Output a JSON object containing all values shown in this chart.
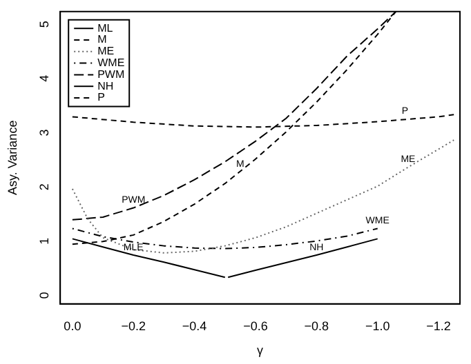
{
  "chart_data": {
    "type": "line",
    "xlabel": "γ",
    "ylabel": "Asy. Variance",
    "xlim": [
      0.04,
      -1.27
    ],
    "ylim": [
      -0.22,
      5.17
    ],
    "xticks": [
      {
        "value": 0,
        "label": "0.0"
      },
      {
        "value": -0.2,
        "label": "−0.2"
      },
      {
        "value": -0.4,
        "label": "−0.4"
      },
      {
        "value": -0.6,
        "label": "−0.6"
      },
      {
        "value": -0.8,
        "label": "−0.8"
      },
      {
        "value": -1,
        "label": "−1.0"
      },
      {
        "value": -1.2,
        "label": "−1.2"
      }
    ],
    "yticks": [
      0,
      1,
      2,
      3,
      4,
      5
    ],
    "grid": false,
    "legend": "top left",
    "marker": "none",
    "series": [
      {
        "name": "ML",
        "color": "#000000",
        "line_style": "solid",
        "x": [
          0,
          -0.1,
          -0.2,
          -0.3,
          -0.4,
          -0.5
        ],
        "values": [
          0.98,
          0.83,
          0.68,
          0.55,
          0.41,
          0.27
        ]
      },
      {
        "name": "M",
        "color": "#000000",
        "line_style": "dashed",
        "x": [
          0,
          -0.1,
          -0.2,
          -0.3,
          -0.4,
          -0.5,
          -0.6,
          -0.7,
          -0.8,
          -0.9,
          -1.0,
          -1.06
        ],
        "values": [
          0.88,
          0.93,
          1.05,
          1.3,
          1.62,
          2.0,
          2.45,
          2.95,
          3.5,
          4.1,
          4.75,
          5.17
        ]
      },
      {
        "name": "ME",
        "color": "#666666",
        "line_style": "dotted",
        "x": [
          0,
          -0.05,
          -0.1,
          -0.2,
          -0.3,
          -0.4,
          -0.5,
          -0.6,
          -0.7,
          -0.8,
          -0.9,
          -1.0,
          -1.1,
          -1.25
        ],
        "values": [
          1.9,
          1.35,
          1.0,
          0.78,
          0.72,
          0.75,
          0.85,
          1.0,
          1.2,
          1.45,
          1.7,
          1.95,
          2.3,
          2.8
        ]
      },
      {
        "name": "WME",
        "color": "#000000",
        "line_style": "dashdot",
        "x": [
          0,
          -0.1,
          -0.2,
          -0.3,
          -0.4,
          -0.5,
          -0.6,
          -0.7,
          -0.8,
          -0.9,
          -1.0
        ],
        "values": [
          1.17,
          1.02,
          0.92,
          0.85,
          0.81,
          0.8,
          0.82,
          0.87,
          0.94,
          1.03,
          1.17
        ]
      },
      {
        "name": "PWM",
        "color": "#000000",
        "line_style": "longdash",
        "x": [
          0,
          -0.1,
          -0.2,
          -0.3,
          -0.4,
          -0.5,
          -0.6,
          -0.7,
          -0.8,
          -0.9,
          -1.0,
          -1.06
        ],
        "values": [
          1.33,
          1.38,
          1.55,
          1.78,
          2.07,
          2.4,
          2.78,
          3.2,
          3.75,
          4.35,
          4.85,
          5.17
        ]
      },
      {
        "name": "NH",
        "color": "#000000",
        "line_style": "solid",
        "x": [
          -0.51,
          -0.6,
          -0.7,
          -0.8,
          -0.9,
          -1.0
        ],
        "values": [
          0.27,
          0.4,
          0.54,
          0.68,
          0.83,
          0.98
        ]
      },
      {
        "name": "P",
        "color": "#000000",
        "line_style": "dashed",
        "x": [
          0,
          -0.2,
          -0.4,
          -0.6,
          -0.8,
          -1.0,
          -1.2,
          -1.25
        ],
        "values": [
          3.23,
          3.13,
          3.06,
          3.04,
          3.07,
          3.14,
          3.23,
          3.27
        ]
      }
    ],
    "annotations": [
      {
        "text": "PWM",
        "x": -0.2,
        "y": 1.55
      },
      {
        "text": "M",
        "x": -0.55,
        "y": 2.22
      },
      {
        "text": "ME",
        "x": -1.1,
        "y": 2.3
      },
      {
        "text": "WME",
        "x": -1.0,
        "y": 1.17
      },
      {
        "text": "MLE",
        "x": -0.2,
        "y": 0.68
      },
      {
        "text": "NH",
        "x": -0.8,
        "y": 0.68
      },
      {
        "text": "P",
        "x": -1.09,
        "y": 3.2
      }
    ]
  }
}
